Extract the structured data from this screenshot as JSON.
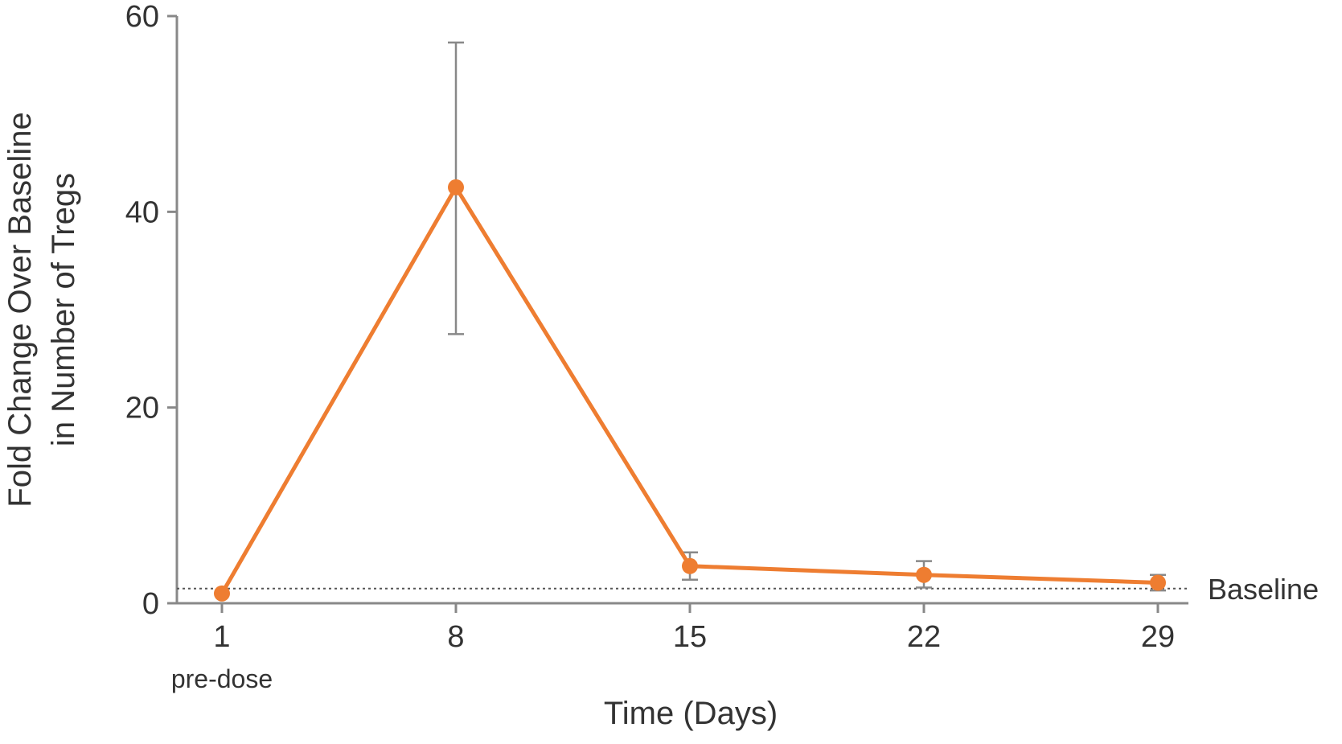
{
  "chart_data": {
    "type": "line",
    "xlabel": "Time (Days)",
    "ylabel_lines": [
      "Fold Change Over Baseline",
      "in Number of Tregs"
    ],
    "x_ticks": [
      "1",
      "8",
      "15",
      "22",
      "29"
    ],
    "x_tick_sublabels": {
      "1": "pre-dose"
    },
    "y_ticks": [
      "0",
      "20",
      "40",
      "60"
    ],
    "ylim": [
      0,
      60
    ],
    "grid": false,
    "legend": "none",
    "series": [
      {
        "x": [
          1,
          8,
          15,
          22,
          29
        ],
        "values": [
          1.0,
          42.5,
          3.8,
          2.9,
          2.1
        ],
        "error_low": [
          1.0,
          27.5,
          2.4,
          1.6,
          1.3
        ],
        "error_high": [
          1.0,
          57.3,
          5.2,
          4.3,
          2.9
        ],
        "color": "#ee7d31"
      }
    ],
    "reference_line": {
      "value": 1.5,
      "label": "Baseline",
      "style": "dotted",
      "color": "#555555"
    },
    "axis_color": "#888888",
    "error_bar_color": "#888888"
  }
}
